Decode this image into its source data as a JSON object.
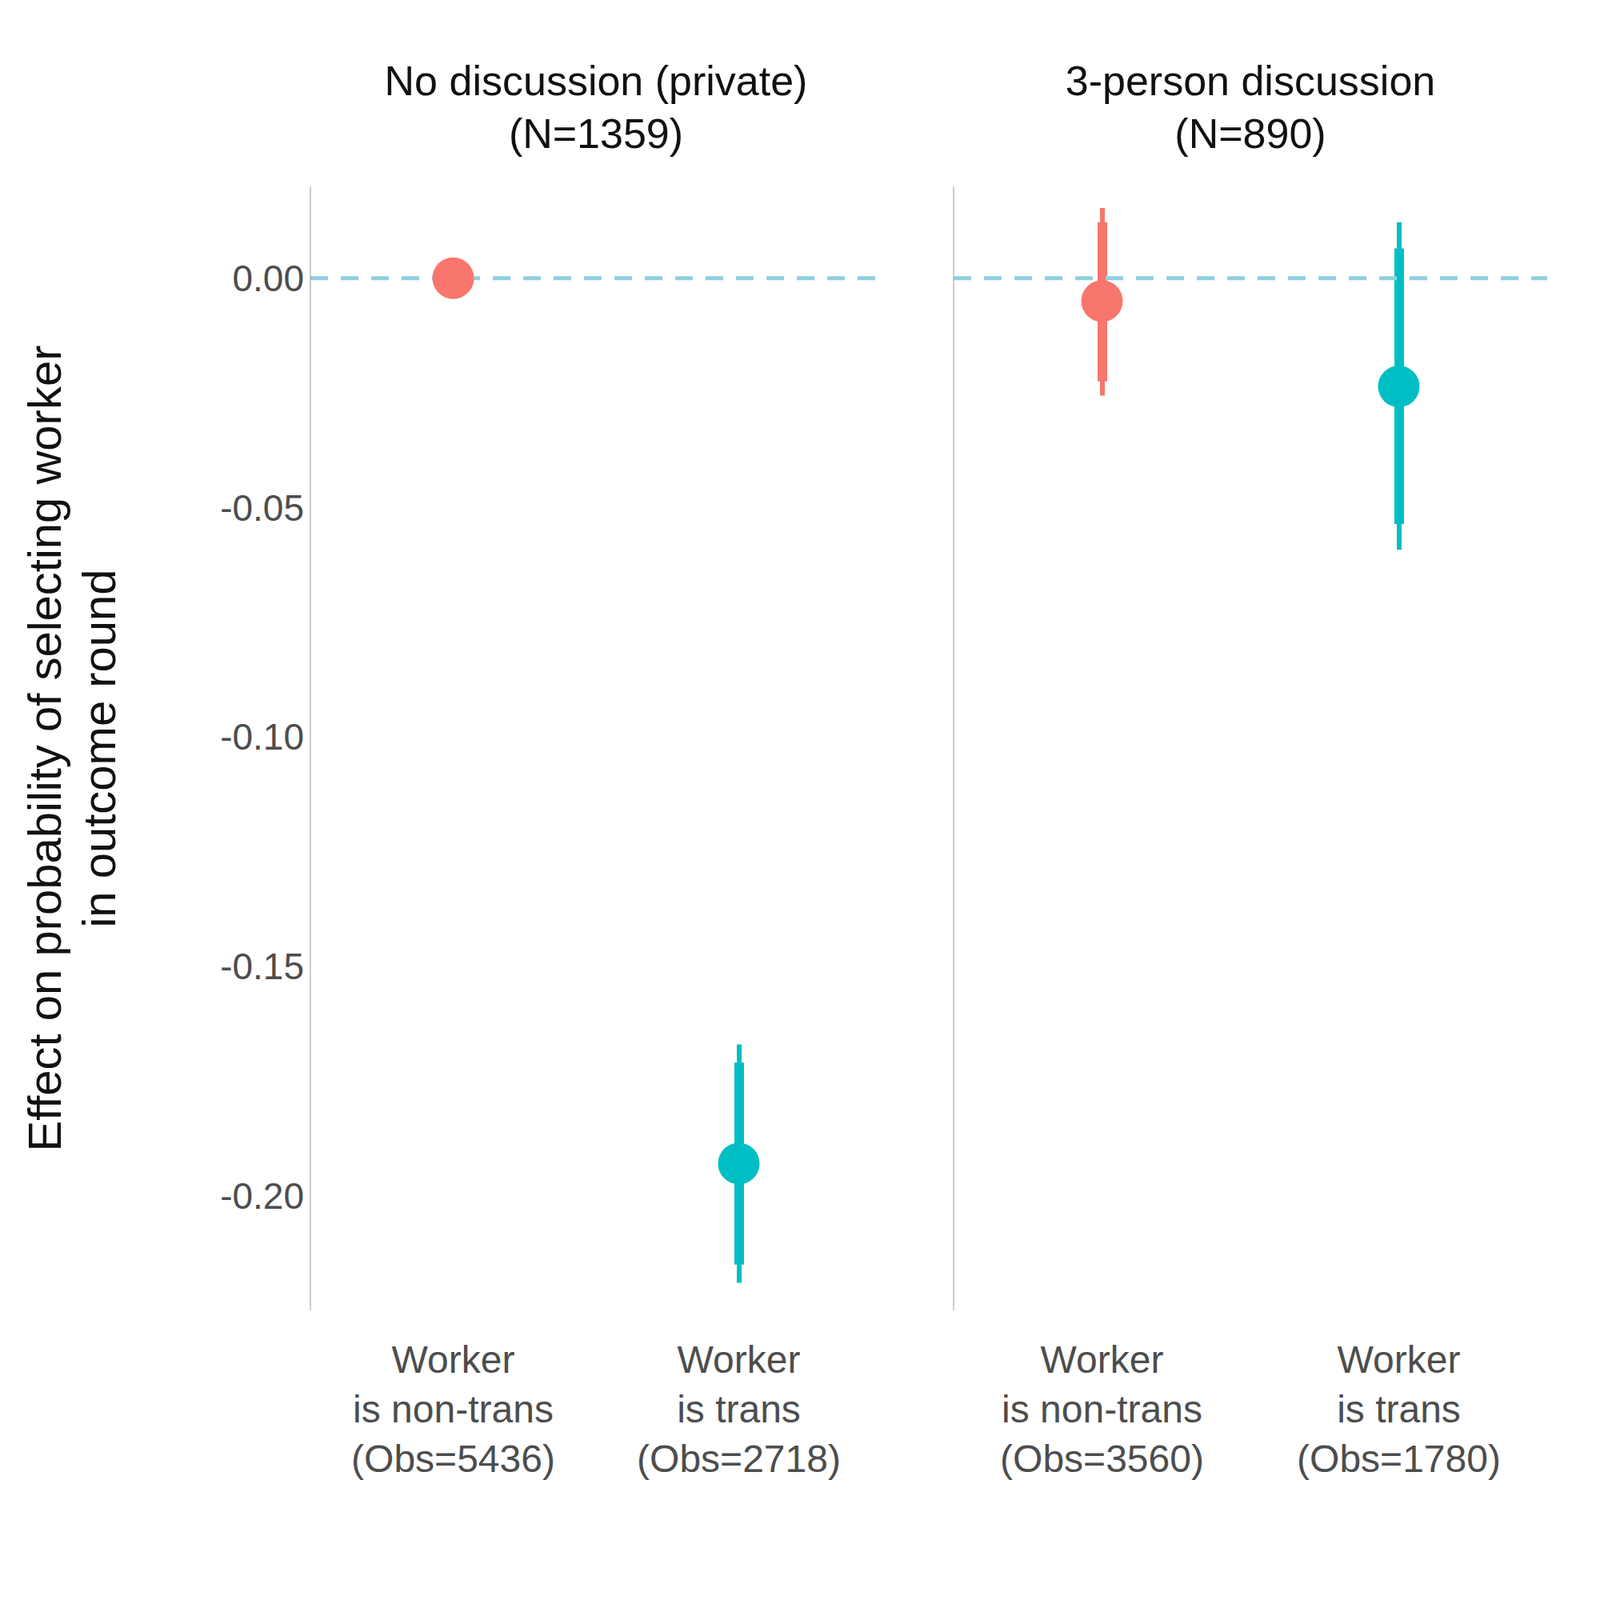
{
  "chart_data": [
    {
      "type": "scatter",
      "title": "No discussion (private)\n(N=1359)",
      "y_label": "Effect on probability of selecting worker\nin outcome round",
      "categories": [
        "Worker\nis non-trans\n(Obs=5436)",
        "Worker\nis trans\n(Obs=2718)"
      ],
      "values": [
        0,
        -0.193
      ],
      "ci_outer": [
        null,
        [
          -0.219,
          -0.167
        ]
      ],
      "ci_inner": [
        null,
        [
          -0.215,
          -0.171
        ]
      ],
      "colors": [
        "#F8766D",
        "#00BFC4"
      ],
      "hline": 0,
      "ylim": [
        -0.225,
        0.02
      ],
      "yticks": [
        {
          "value": 0,
          "label": "0.00"
        },
        -0.05,
        {
          "value": -0.1,
          "label": "-0.10"
        },
        -0.15,
        {
          "value": -0.2,
          "label": "-0.20"
        }
      ],
      "grid": false
    },
    {
      "type": "scatter",
      "title": "3-person discussion\n(N=890)",
      "categories": [
        "Worker\nis non-trans\n(Obs=3560)",
        "Worker\nis trans\n(Obs=1780)"
      ],
      "values": [
        -0.005,
        -0.0236
      ],
      "ci_outer": [
        [
          -0.0256,
          0.0153
        ],
        [
          -0.0592,
          0.0122
        ]
      ],
      "ci_inner": [
        [
          -0.0225,
          0.0122
        ],
        [
          -0.0536,
          0.0065
        ]
      ],
      "colors": [
        "#F8766D",
        "#00BFC4"
      ],
      "hline": 0,
      "ylim": [
        -0.225,
        0.02
      ],
      "yticks": [
        {
          "value": 0,
          "label": "0.00"
        },
        -0.05,
        {
          "value": -0.1,
          "label": "-0.10"
        },
        -0.15,
        {
          "value": -0.2,
          "label": "-0.20"
        }
      ],
      "tick_labels": "x",
      "grid": false
    }
  ]
}
